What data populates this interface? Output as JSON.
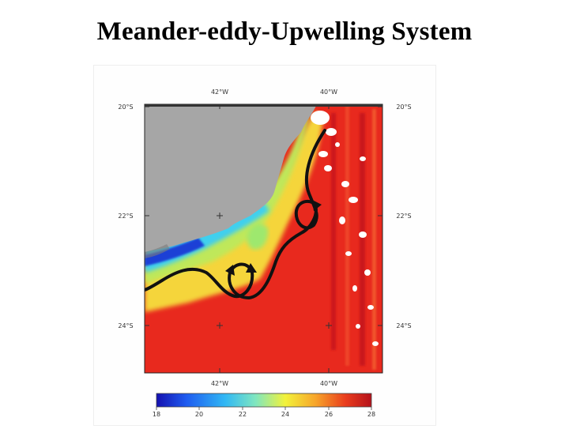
{
  "title": "Meander-eddy-Upwelling System",
  "map": {
    "longitude_labels_top": [
      "42°W",
      "40°W"
    ],
    "longitude_labels_bottom": [
      "42°W",
      "40°W"
    ],
    "latitude_labels_left": [
      "20°S",
      "22°S",
      "24°S"
    ],
    "latitude_labels_right": [
      "20°S",
      "22°S",
      "24°S"
    ],
    "colors": {
      "land": "#a6a6a6",
      "warm_water": "#e8291e",
      "mid_water": "#f5e640",
      "cool_water": "#3fd0ee",
      "cold_water": "#1a3fd6",
      "cloud": "#ffffff",
      "current_path": "#111111"
    }
  },
  "colorbar": {
    "tick_labels": [
      "18",
      "20",
      "22",
      "24",
      "26",
      "28"
    ],
    "colors": [
      "#1410b0",
      "#1e5cf0",
      "#31b8f4",
      "#7fe6c0",
      "#f2f23a",
      "#f7a52a",
      "#e93c1d",
      "#b5121b"
    ]
  }
}
